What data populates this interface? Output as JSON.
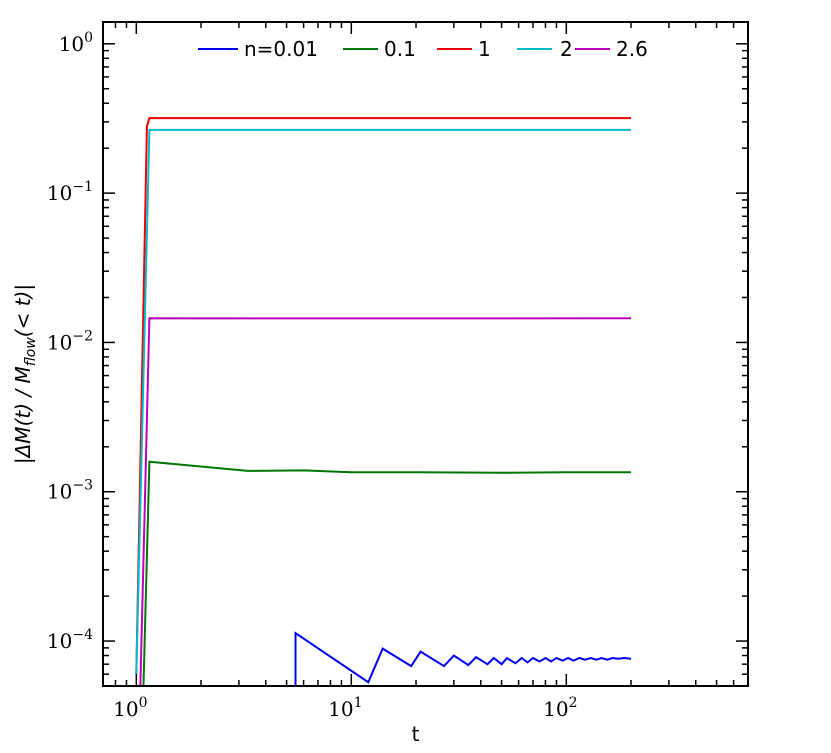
{
  "chart_data": {
    "type": "line",
    "xlabel": "t",
    "ylabel": "|ΔM(t) / M_flow(< t)|",
    "ylabel_parts": {
      "pre": "|ΔM(t) / M",
      "sub": "flow",
      "post": "(< t)|"
    },
    "x_scale": "log",
    "y_scale": "log",
    "xlim": [
      0.7,
      700
    ],
    "ylim": [
      5e-05,
      1.4
    ],
    "grid": false,
    "legend": "top-center",
    "x_ticks": [
      {
        "base": "10",
        "exp": "0",
        "value": 1
      },
      {
        "base": "10",
        "exp": "1",
        "value": 10
      },
      {
        "base": "10",
        "exp": "2",
        "value": 100
      }
    ],
    "y_ticks": [
      {
        "base": "10",
        "exp": "−4",
        "value": 0.0001
      },
      {
        "base": "10",
        "exp": "−3",
        "value": 0.001
      },
      {
        "base": "10",
        "exp": "−2",
        "value": 0.01
      },
      {
        "base": "10",
        "exp": "−1",
        "value": 0.1
      },
      {
        "base": "10",
        "exp": "0",
        "value": 1
      }
    ],
    "series": [
      {
        "name": "n=0.01",
        "color": "#0000ee",
        "points": [
          [
            5.5,
            4e-05
          ],
          [
            5.5,
            0.000113
          ],
          [
            12,
            5.3e-05
          ],
          [
            14,
            8.9e-05
          ],
          [
            19,
            6.8e-05
          ],
          [
            21,
            8.5e-05
          ],
          [
            27,
            6.8e-05
          ],
          [
            30,
            8e-05
          ],
          [
            35,
            6.9e-05
          ],
          [
            38,
            7.8e-05
          ],
          [
            43,
            7e-05
          ],
          [
            46,
            7.7e-05
          ],
          [
            50,
            7e-05
          ],
          [
            53,
            7.7e-05
          ],
          [
            58,
            7.1e-05
          ],
          [
            62,
            7.7e-05
          ],
          [
            66,
            7.2e-05
          ],
          [
            70,
            7.7e-05
          ],
          [
            75,
            7.3e-05
          ],
          [
            80,
            7.7e-05
          ],
          [
            85,
            7.3e-05
          ],
          [
            90,
            7.7e-05
          ],
          [
            96,
            7.4e-05
          ],
          [
            102,
            7.7e-05
          ],
          [
            108,
            7.4e-05
          ],
          [
            115,
            7.7e-05
          ],
          [
            122,
            7.5e-05
          ],
          [
            130,
            7.7e-05
          ],
          [
            138,
            7.5e-05
          ],
          [
            146,
            7.7e-05
          ],
          [
            155,
            7.5e-05
          ],
          [
            164,
            7.7e-05
          ],
          [
            174,
            7.6e-05
          ],
          [
            186,
            7.7e-05
          ],
          [
            200,
            7.6e-05
          ]
        ]
      },
      {
        "name": "0.1",
        "color": "#007700",
        "points": [
          [
            1.07,
            3e-05
          ],
          [
            1.15,
            0.00159
          ],
          [
            3.3,
            0.00138
          ],
          [
            6,
            0.00139
          ],
          [
            10,
            0.00135
          ],
          [
            20,
            0.00135
          ],
          [
            50,
            0.00134
          ],
          [
            100,
            0.00135
          ],
          [
            200,
            0.00135
          ]
        ]
      },
      {
        "name": "1",
        "color": "#ee0000",
        "points": [
          [
            1.0,
            6e-05
          ],
          [
            1.12,
            0.28
          ],
          [
            1.15,
            0.318
          ],
          [
            200,
            0.318
          ]
        ]
      },
      {
        "name": "2",
        "color": "#00bbcc",
        "points": [
          [
            1.0,
            6e-05
          ],
          [
            1.15,
            0.265
          ],
          [
            200,
            0.265
          ]
        ]
      },
      {
        "name": "2.6",
        "color": "#bb00bb",
        "points": [
          [
            1.04,
            4e-05
          ],
          [
            1.15,
            0.0145
          ],
          [
            10,
            0.01448
          ],
          [
            200,
            0.0145
          ]
        ]
      }
    ]
  }
}
